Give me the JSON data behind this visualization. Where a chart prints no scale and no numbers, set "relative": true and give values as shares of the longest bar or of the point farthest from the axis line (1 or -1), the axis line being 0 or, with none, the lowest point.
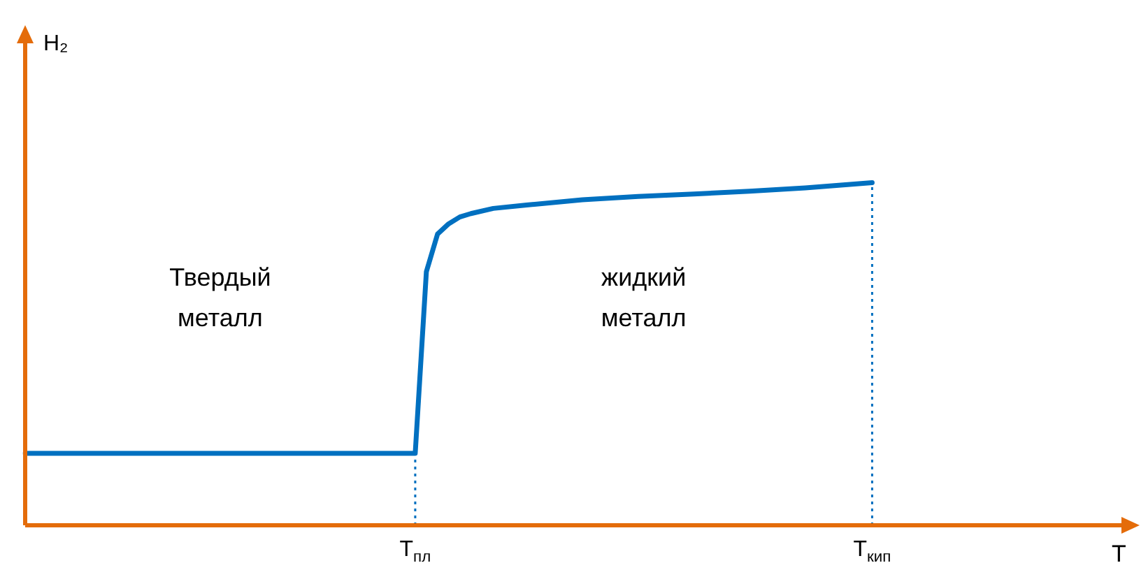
{
  "chart_data": {
    "type": "line",
    "relative": true,
    "xlabel": "T",
    "tick_labels": "x",
    "legend": false,
    "marker": "none",
    "line_style": "solid",
    "categories": [
      null,
      null,
      null,
      null,
      null,
      null,
      null,
      null,
      null,
      null,
      null,
      null,
      null,
      null,
      null,
      null,
      null,
      null,
      null,
      null,
      null,
      null,
      null,
      null,
      null,
      null,
      null,
      null,
      null,
      null,
      null,
      null,
      null,
      null,
      null,
      "T$_{пл}$",
      null,
      null,
      null,
      null,
      null,
      null,
      null,
      null,
      null,
      null,
      null,
      null,
      null,
      null,
      null,
      null,
      null,
      null,
      null,
      null,
      null,
      null,
      null,
      null,
      null,
      null,
      null,
      null,
      null,
      null,
      null,
      null,
      null,
      null,
      null,
      null,
      null,
      null,
      null,
      null,
      "T$_{кип}$",
      null,
      null,
      null,
      null,
      null,
      null,
      null,
      null,
      null,
      null,
      null,
      null,
      null,
      null,
      null,
      null,
      null,
      null,
      null,
      null,
      null,
      null,
      null,
      null
    ],
    "series": [
      {
        "color": "#0070c0",
        "values": [
          0.21,
          null,
          null,
          null,
          null,
          null,
          null,
          null,
          null,
          null,
          null,
          null,
          null,
          null,
          null,
          null,
          null,
          null,
          null,
          null,
          null,
          null,
          null,
          null,
          null,
          null,
          null,
          null,
          null,
          null,
          null,
          null,
          null,
          null,
          null,
          0.21,
          0.74,
          0.85,
          0.88,
          0.9,
          0.91,
          null,
          0.925,
          null,
          null,
          0.935,
          null,
          null,
          null,
          null,
          0.95,
          null,
          null,
          null,
          null,
          0.96,
          null,
          null,
          null,
          null,
          0.967,
          null,
          null,
          null,
          null,
          0.975,
          null,
          null,
          null,
          null,
          0.985,
          null,
          null,
          null,
          null,
          null,
          1,
          null,
          null,
          null,
          null,
          null,
          null,
          null,
          null,
          null,
          null,
          null,
          null,
          null,
          null,
          null,
          null,
          null,
          null,
          null,
          null,
          null,
          null,
          null,
          null
        ]
      }
    ],
    "ref_lines": [
      {
        "axis": "x",
        "value": "T$_{пл}$",
        "line_style": "dotted",
        "color": "#0070c0"
      },
      {
        "axis": "x",
        "value": "T$_{кип}$",
        "line_style": "dotted",
        "color": "#0070c0"
      }
    ],
    "annotations": [
      {
        "text": "H₂"
      },
      "Твердый\nметалл",
      "жидкий\nметалл"
    ]
  }
}
